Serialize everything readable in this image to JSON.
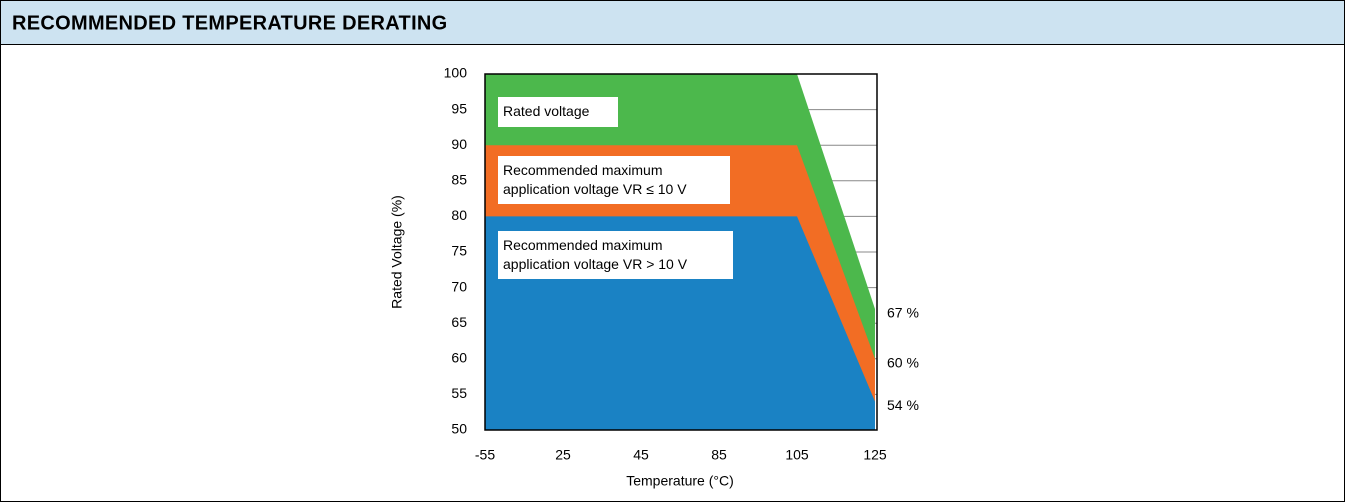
{
  "header": {
    "title": "RECOMMENDED TEMPERATURE DERATING"
  },
  "chart_data": {
    "type": "area",
    "x_label": "Temperature (°C)",
    "y_label": "Rated Voltage (%)",
    "categories": [
      "-55",
      "25",
      "45",
      "85",
      "105",
      "125"
    ],
    "series": [
      {
        "name": "Rated voltage",
        "color": "#4cb84c",
        "values": [
          100,
          100,
          100,
          100,
          100,
          67
        ],
        "value_labels": [
          null,
          null,
          null,
          null,
          null,
          "67 %"
        ]
      },
      {
        "name": "Recommended maximum application voltage VR ≤ 10 V",
        "color": "#f26d24",
        "values": [
          90,
          90,
          90,
          90,
          90,
          60
        ],
        "value_labels": [
          null,
          null,
          null,
          null,
          null,
          "60 %"
        ]
      },
      {
        "name": "Recommended maximum application voltage VR > 10 V",
        "color": "#1a82c4",
        "values": [
          80,
          80,
          80,
          80,
          80,
          54
        ],
        "value_labels": [
          null,
          null,
          null,
          null,
          null,
          "54 %"
        ]
      }
    ],
    "ylim": [
      50,
      100
    ],
    "yticks": [
      50,
      55,
      60,
      65,
      70,
      75,
      80,
      85,
      90,
      95,
      100
    ],
    "grid": true
  }
}
